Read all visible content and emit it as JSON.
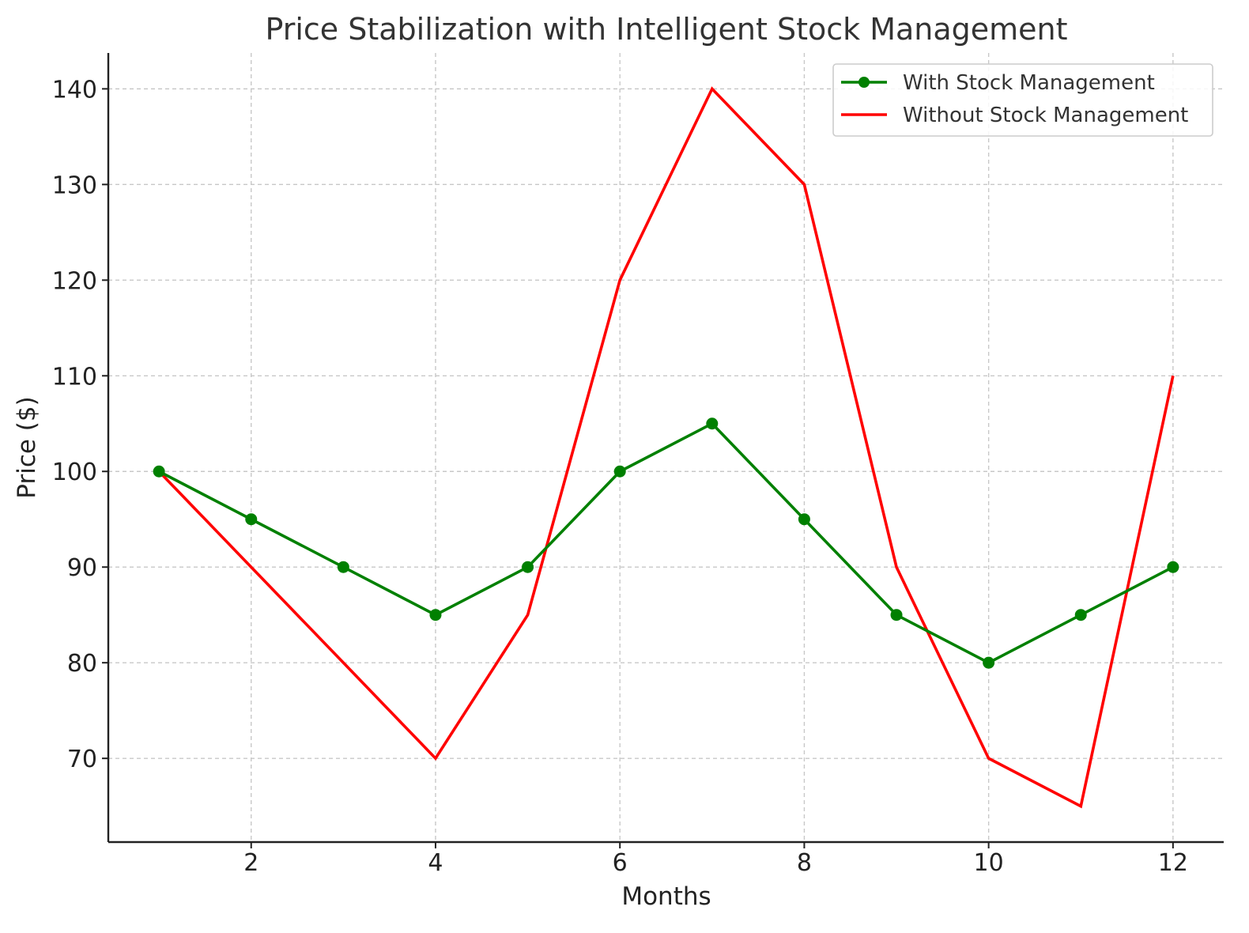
{
  "chart_data": {
    "type": "line",
    "title": "Price Stabilization with Intelligent Stock Management",
    "xlabel": "Months",
    "ylabel": "Price ($)",
    "x": [
      1,
      2,
      3,
      4,
      5,
      6,
      7,
      8,
      9,
      10,
      11,
      12
    ],
    "xlim": [
      0.45,
      12.55
    ],
    "ylim": [
      61.25,
      143.75
    ],
    "x_ticks": [
      2,
      4,
      6,
      8,
      10,
      12
    ],
    "y_ticks": [
      70,
      80,
      90,
      100,
      110,
      120,
      130,
      140
    ],
    "grid": true,
    "legend_position": "top-right",
    "series": [
      {
        "name": "With Stock Management",
        "values": [
          100,
          95,
          90,
          85,
          90,
          100,
          105,
          95,
          85,
          80,
          85,
          90
        ],
        "color": "#008000",
        "marker": "circle"
      },
      {
        "name": "Without Stock Management",
        "values": [
          100,
          90,
          80,
          70,
          85,
          120,
          140,
          130,
          90,
          70,
          65,
          110
        ],
        "color": "#ff0000",
        "marker": "none"
      }
    ]
  }
}
